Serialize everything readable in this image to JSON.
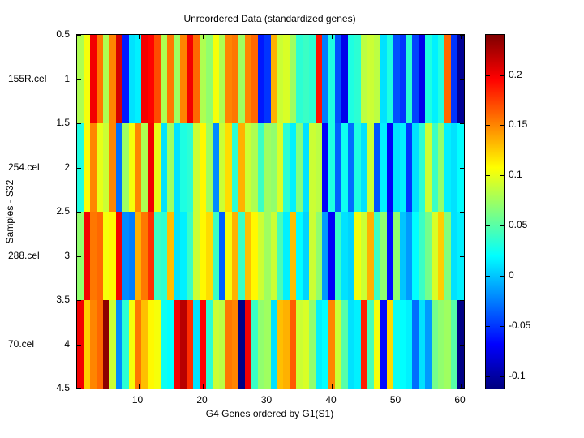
{
  "figure": {
    "background": "#ffffff",
    "axis_color": "#000000"
  },
  "chart_data": {
    "type": "heatmap",
    "title": "Unreordered Data (standardized genes)",
    "xlabel": "G4 Genes ordered by G1(S1)",
    "ylabel": "Samples - S32",
    "colormap": "jet",
    "color_range": [
      -0.112,
      0.24
    ],
    "x_range": [
      0.5,
      60.5
    ],
    "y_range": [
      0.5,
      4.5
    ],
    "grid": false,
    "legend_position": "colorbar-right",
    "x_ticks": [
      10,
      20,
      30,
      40,
      50,
      60
    ],
    "x_tick_labels": [
      "10",
      "20",
      "30",
      "40",
      "50",
      "60"
    ],
    "y_ticks": [
      0.5,
      1,
      1.5,
      2,
      2.5,
      3,
      3.5,
      4,
      4.5
    ],
    "y_tick_labels": [
      "0.5",
      "1",
      "1.5",
      "2",
      "2.5",
      "3",
      "3.5",
      "4",
      "4.5"
    ],
    "colorbar_ticks": [
      0.2,
      0.15,
      0.1,
      0.05,
      0,
      -0.05,
      -0.1
    ],
    "colorbar_tick_labels": [
      "0.2",
      "0.15",
      "0.1",
      "0.05",
      "0",
      "-0.05",
      "-0.1"
    ],
    "sample_label_y": [
      1,
      2,
      3,
      4
    ],
    "rows": [
      {
        "name": "155R.cel",
        "values": [
          0.08,
          0.105,
          0.2,
          0.155,
          0.08,
          0.15,
          0.21,
          -0.06,
          0.01,
          0.015,
          0.2,
          0.195,
          0.17,
          0.08,
          0.155,
          0.075,
          0.15,
          0.2,
          0.16,
          0.08,
          0.07,
          0.105,
          0.08,
          0.15,
          0.155,
          0.075,
          0.15,
          0.16,
          -0.06,
          -0.05,
          0.135,
          0.09,
          0.095,
          0.075,
          0.035,
          0.04,
          0.035,
          0.19,
          -0.025,
          0.03,
          -0.04,
          -0.075,
          0.03,
          0.035,
          0.085,
          0.09,
          0.085,
          0.01,
          0.03,
          -0.04,
          -0.05,
          0.035,
          -0.045,
          -0.075,
          0.03,
          0.015,
          0.03,
          0.16,
          -0.05,
          -0.105
        ]
      },
      {
        "name": "254.cel",
        "values": [
          0.03,
          0.105,
          0.15,
          0.1,
          0.09,
          0.15,
          -0.03,
          0.075,
          0.105,
          0.15,
          0.08,
          0.2,
          0.1,
          0.01,
          0.075,
          0.01,
          0.03,
          0.035,
          0.09,
          0.11,
          0.075,
          -0.02,
          0.09,
          0.12,
          0.035,
          0.135,
          0.09,
          0.08,
          0.04,
          0.075,
          0.07,
          0.095,
          0.035,
          0.015,
          0.065,
          0.01,
          0.09,
          0.085,
          -0.07,
          0.03,
          -0.035,
          0.025,
          -0.03,
          0.03,
          0.01,
          0.09,
          -0.04,
          0.015,
          -0.07,
          0.01,
          0.015,
          -0.05,
          0.01,
          0.035,
          0.09,
          0.04,
          0.07,
          0.015,
          0.01,
          0.02
        ]
      },
      {
        "name": "288.cel",
        "values": [
          0.07,
          0.2,
          0.155,
          0.16,
          0.105,
          0.11,
          0.2,
          -0.02,
          -0.025,
          0.135,
          0.155,
          0.18,
          0.04,
          0.035,
          0.13,
          0.01,
          0.015,
          0.04,
          0.09,
          0.11,
          0.12,
          0.04,
          -0.035,
          0.105,
          0.135,
          0.04,
          0.13,
          0.11,
          0.09,
          0.075,
          0.09,
          0.045,
          0.015,
          0.13,
          0.02,
          0.005,
          0.09,
          0.07,
          -0.015,
          -0.07,
          0.04,
          0.01,
          0.005,
          0.105,
          0.09,
          0.135,
          0.04,
          0.07,
          -0.065,
          0.07,
          0.0,
          -0.015,
          0.02,
          0.04,
          0.06,
          0.095,
          0.125,
          0.065,
          0.01,
          0.015
        ]
      },
      {
        "name": "70.cel",
        "values": [
          0.2,
          0.125,
          0.15,
          0.16,
          0.235,
          0.09,
          -0.02,
          0.035,
          0.105,
          0.155,
          0.13,
          0.11,
          0.105,
          0.025,
          0.02,
          0.2,
          0.22,
          0.18,
          0.01,
          0.195,
          0.035,
          0.09,
          0.085,
          0.155,
          0.15,
          -0.11,
          0.2,
          0.04,
          0.07,
          0.075,
          0.01,
          0.13,
          0.135,
          0.165,
          0.09,
          0.095,
          0.07,
          0.015,
          0.02,
          0.15,
          0.09,
          0.05,
          0.01,
          0.015,
          0.185,
          0.045,
          0.105,
          -0.065,
          0.12,
          0.025,
          0.02,
          0.015,
          -0.03,
          0.01,
          -0.015,
          0.06,
          0.07,
          0.075,
          0.05,
          -0.11
        ]
      }
    ]
  }
}
